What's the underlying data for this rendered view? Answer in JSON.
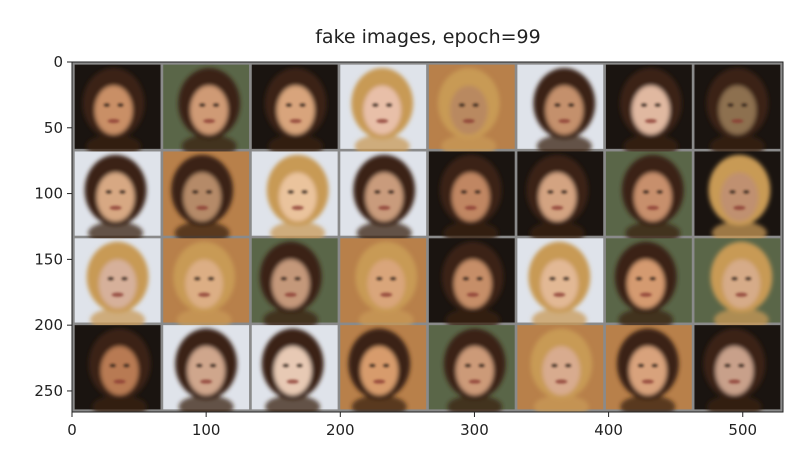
{
  "chart_data": {
    "type": "image",
    "title": "fake images,  epoch=99",
    "xlabel": "",
    "ylabel": "",
    "xlim": [
      0,
      530
    ],
    "ylim": [
      266,
      0
    ],
    "x_ticks": [
      0,
      100,
      200,
      300,
      400,
      500
    ],
    "y_ticks": [
      0,
      50,
      100,
      150,
      200,
      250
    ],
    "grid": false,
    "grid_rows": 4,
    "grid_cols": 8,
    "tile_size": 64,
    "tile_padding": 2,
    "separator_color": "#8a8a8a",
    "palette": {
      "skin": "#d9a57a",
      "hair_dark": "#3a2414",
      "hair_blond": "#c89a55",
      "bg_dark": "#1a1410",
      "bg_light": "#dfe3ea",
      "bg_warm": "#b8804a",
      "bg_green": "#5a6648"
    }
  }
}
